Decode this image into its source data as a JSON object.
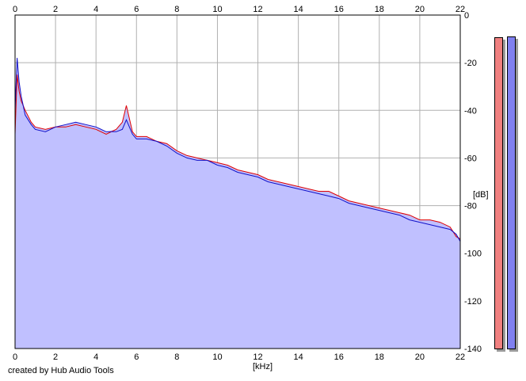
{
  "credit_text": "created by Hub Audio Tools",
  "chart_data": {
    "type": "line",
    "title": "",
    "xlabel": "[kHz]",
    "ylabel": "[dB]",
    "xlim": [
      0,
      22
    ],
    "ylim": [
      -140,
      0
    ],
    "x_ticks": [
      0,
      2,
      4,
      6,
      8,
      10,
      12,
      14,
      16,
      18,
      20,
      22
    ],
    "y_ticks": [
      0,
      -20,
      -40,
      -60,
      -80,
      -100,
      -120,
      -140
    ],
    "y_tick_labels": [
      "0",
      "-20",
      "-40",
      "-60",
      "-80",
      "-100",
      "-120",
      "-140"
    ],
    "grid": true,
    "series": [
      {
        "color": "#e00000",
        "x": [
          0,
          0.1,
          0.2,
          0.3,
          0.5,
          0.8,
          1.0,
          1.5,
          2.0,
          2.5,
          3.0,
          3.5,
          4.0,
          4.5,
          5.0,
          5.3,
          5.5,
          5.8,
          6.0,
          6.5,
          7.0,
          7.5,
          8.0,
          8.5,
          9.0,
          9.5,
          10.0,
          10.5,
          11.0,
          11.5,
          12.0,
          12.5,
          13.0,
          13.5,
          14.0,
          14.5,
          15.0,
          15.5,
          16.0,
          16.5,
          17.0,
          17.5,
          18.0,
          18.5,
          19.0,
          19.5,
          20.0,
          20.5,
          21.0,
          21.5,
          21.8,
          22.0
        ],
        "values": [
          -50,
          -25,
          -32,
          -36,
          -40,
          -45,
          -47,
          -48,
          -47,
          -47,
          -46,
          -47,
          -48,
          -50,
          -48,
          -45,
          -38,
          -49,
          -51,
          -51,
          -53,
          -54,
          -57,
          -59,
          -60,
          -61,
          -62,
          -63,
          -65,
          -66,
          -67,
          -69,
          -70,
          -71,
          -72,
          -73,
          -74,
          -74,
          -76,
          -78,
          -79,
          -80,
          -81,
          -82,
          -83,
          -84,
          -86,
          -86,
          -87,
          -89,
          -93,
          -94
        ]
      },
      {
        "color": "#1010c8",
        "x": [
          0,
          0.1,
          0.2,
          0.3,
          0.5,
          0.8,
          1.0,
          1.5,
          2.0,
          2.5,
          3.0,
          3.5,
          4.0,
          4.5,
          5.0,
          5.3,
          5.5,
          5.8,
          6.0,
          6.5,
          7.0,
          7.5,
          8.0,
          8.5,
          9.0,
          9.5,
          10.0,
          10.5,
          11.0,
          11.5,
          12.0,
          12.5,
          13.0,
          13.5,
          14.0,
          14.5,
          15.0,
          15.5,
          16.0,
          16.5,
          17.0,
          17.5,
          18.0,
          18.5,
          19.0,
          19.5,
          20.0,
          20.5,
          21.0,
          21.5,
          21.8,
          22.0
        ],
        "values": [
          -40,
          -18,
          -28,
          -34,
          -42,
          -46,
          -48,
          -49,
          -47,
          -46,
          -45,
          -46,
          -47,
          -49,
          -49,
          -48,
          -44,
          -50,
          -52,
          -52,
          -53,
          -55,
          -58,
          -60,
          -61,
          -61,
          -63,
          -64,
          -66,
          -67,
          -68,
          -70,
          -71,
          -72,
          -73,
          -74,
          -75,
          -76,
          -77,
          -79,
          -80,
          -81,
          -82,
          -83,
          -84,
          -86,
          -87,
          -88,
          -89,
          -90,
          -92,
          -95
        ]
      }
    ],
    "fill_color": "#c0c0ff",
    "meters": [
      {
        "color": "#f08080",
        "level": 0.93
      },
      {
        "color": "#8080f0",
        "level": 0.94
      }
    ]
  }
}
